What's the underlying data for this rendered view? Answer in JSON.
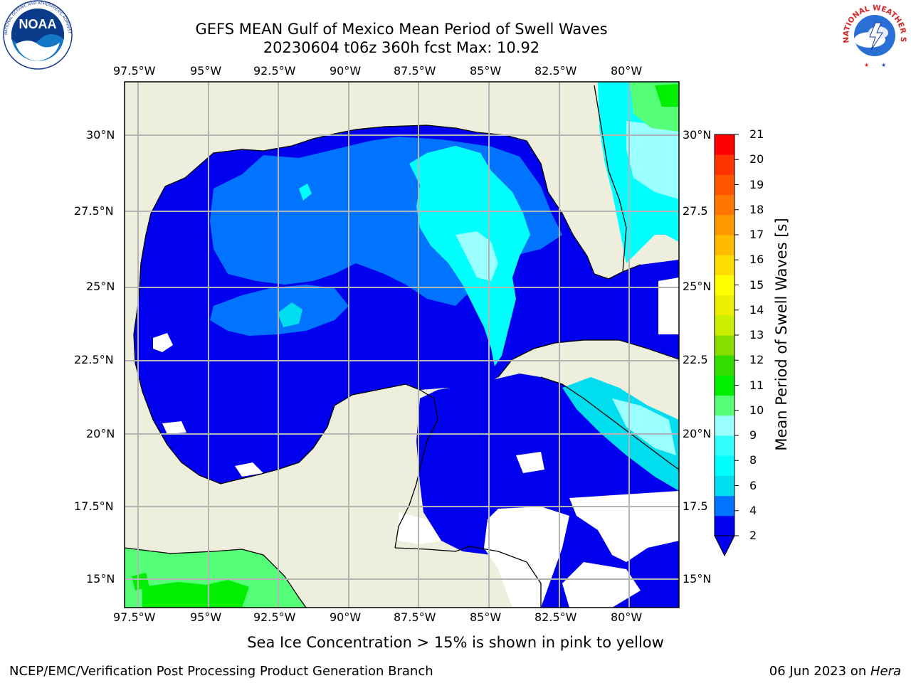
{
  "header": {
    "title": "GEFS MEAN Gulf of Mexico Mean Period of Swell Waves",
    "subtitle": "20230604 t06z 360h fcst   Max: 10.92"
  },
  "logos": {
    "noaa_text": "NOAA",
    "noaa_ring_text": "NATIONAL OCEANIC AND ATMOSPHERIC ADMINISTRATION · U.S. DEPARTMENT OF COMMERCE",
    "nws_ring_text": "NATIONAL WEATHER SERVICE"
  },
  "map": {
    "lon_labels": [
      "97.5°W",
      "95°W",
      "92.5°W",
      "90°W",
      "87.5°W",
      "85°W",
      "82.5°W",
      "80°W"
    ],
    "lat_labels": [
      "30°N",
      "27.5°N",
      "25°N",
      "22.5°N",
      "20°N",
      "17.5°N",
      "15°N"
    ],
    "lat_labels_right": [
      "30°N",
      "27.5",
      "25°N",
      "22.5",
      "20°N",
      "17.5",
      "15°N"
    ],
    "colors": {
      "land": "#eeeedd",
      "coast": "#000000",
      "grid": "#b4b4b4",
      "no_data": "#ffffff"
    }
  },
  "colorbar": {
    "label": "Mean Period of Swell Waves [s]",
    "ticks": [
      "2",
      "4",
      "6",
      "8",
      "9",
      "10",
      "11",
      "12",
      "13",
      "14",
      "15",
      "16",
      "17",
      "18",
      "19",
      "20",
      "21"
    ],
    "colors": [
      "#0000ee",
      "#0073ff",
      "#00ddee",
      "#00ffff",
      "#33ffff",
      "#99ffff",
      "#55ff77",
      "#00ee00",
      "#33dd00",
      "#88dd00",
      "#ccee00",
      "#eeee00",
      "#ffff00",
      "#ffdd00",
      "#ffbb00",
      "#ff9900",
      "#ff7700",
      "#ff5500",
      "#ff3300",
      "#ff0000"
    ],
    "under_color": "#0000ee"
  },
  "footer": {
    "note": "Sea Ice Concentration > 15% is shown in pink to yellow",
    "left": "NCEP/EMC/Verification Post Processing Product Generation Branch",
    "right_date": "06 Jun 2023 on ",
    "right_host": "Hera"
  }
}
